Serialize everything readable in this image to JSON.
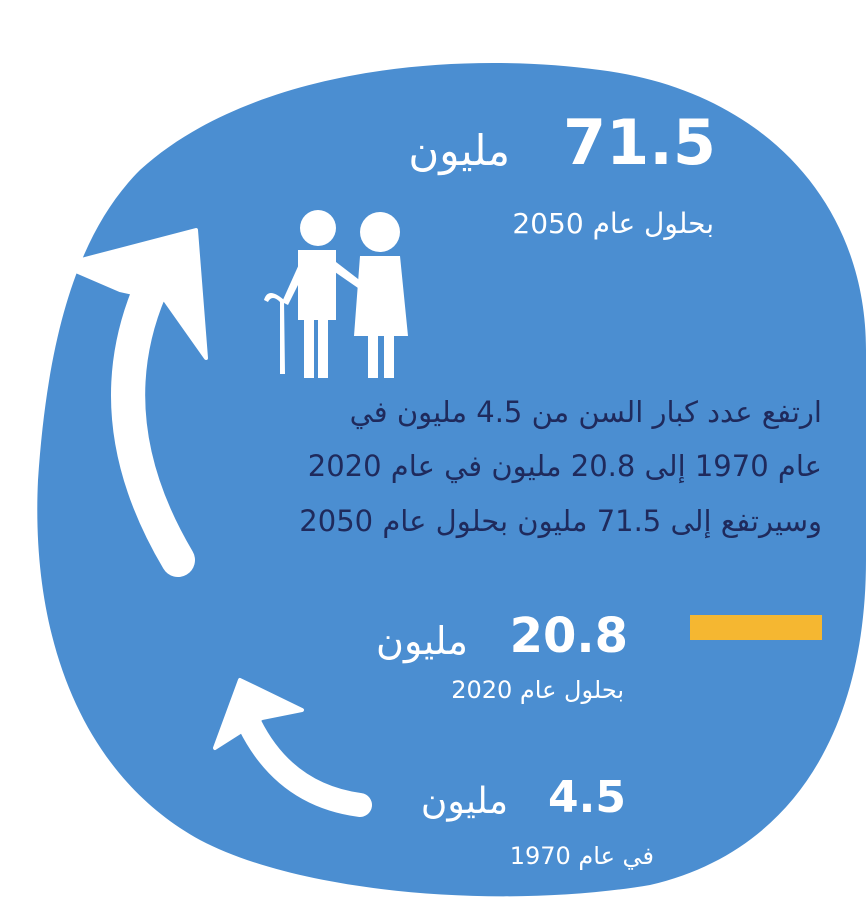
{
  "stats": [
    {
      "amount": "71.5",
      "unit": "مليون",
      "caption": "بحلول عام 2050"
    },
    {
      "amount": "20.8",
      "unit": "مليون",
      "caption": "بحلول عام 2020"
    },
    {
      "amount": "4.5",
      "unit": "مليون",
      "caption": "في عام 1970"
    }
  ],
  "paragraph": {
    "lines": [
      "ارتفع عدد كبار السن من 4.5 مليون في",
      "عام 1970 إلى 20.8 مليون في عام 2020",
      "وسيرتفع إلى 71.5 مليون بحلول عام 2050"
    ]
  }
}
